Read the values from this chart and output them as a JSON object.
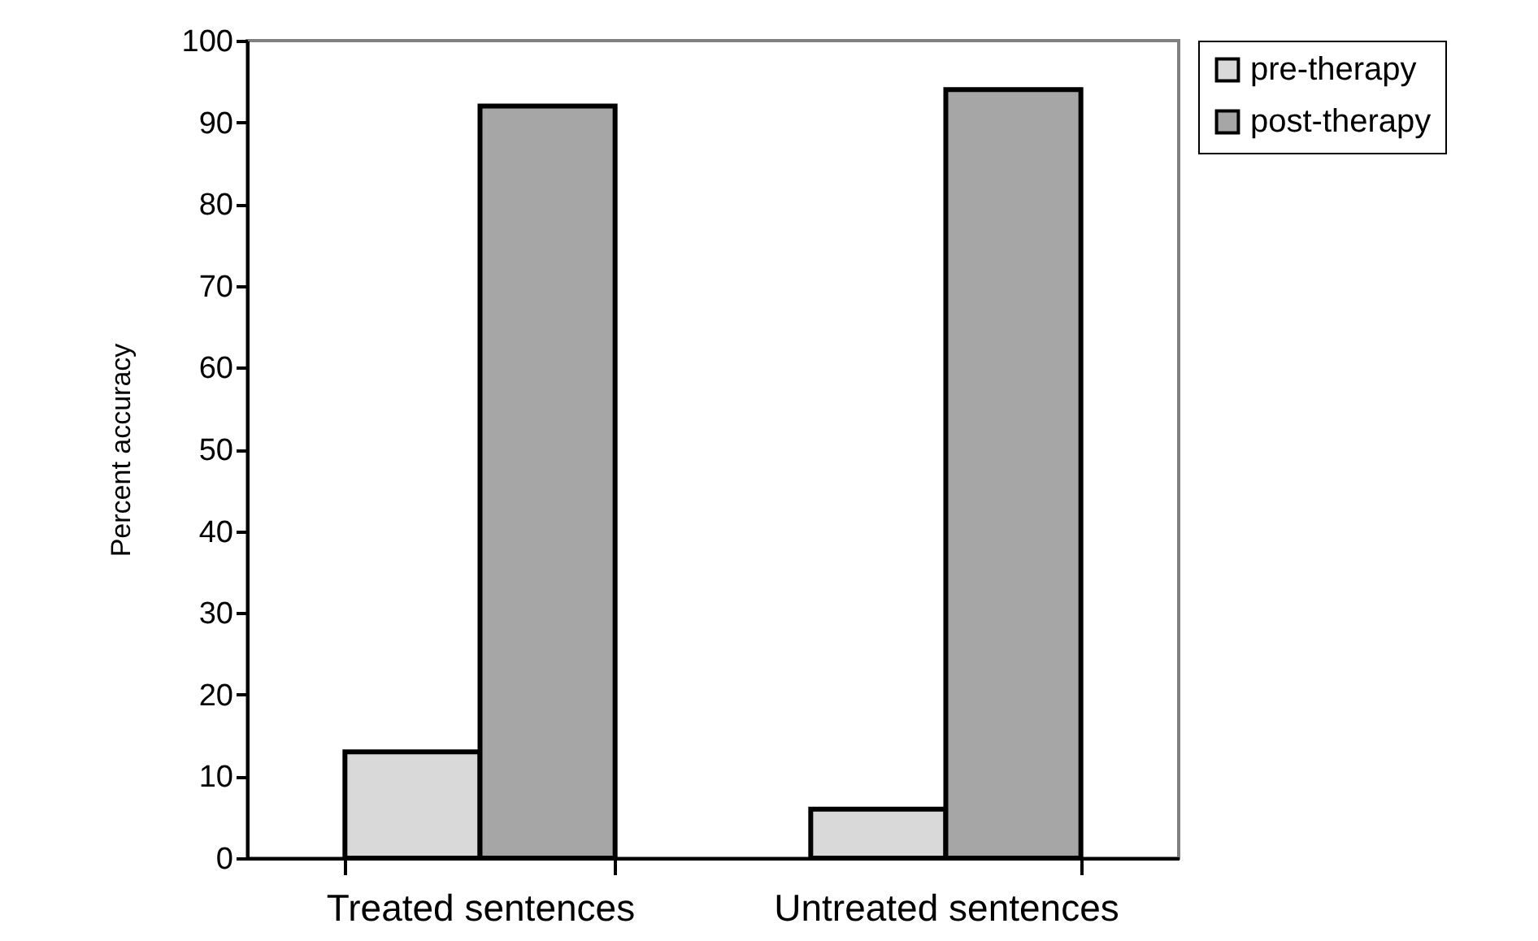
{
  "chart_data": {
    "type": "bar",
    "ylabel": "Percent accuracy",
    "categories": [
      "Treated sentences",
      "Untreated sentences"
    ],
    "series": [
      {
        "name": "pre-therapy",
        "color": "#d9d9d9",
        "values": [
          13,
          6
        ]
      },
      {
        "name": "post-therapy",
        "color": "#a6a6a6",
        "values": [
          92,
          94
        ]
      }
    ],
    "ylim": [
      0,
      100
    ],
    "yticks": [
      0,
      10,
      20,
      30,
      40,
      50,
      60,
      70,
      80,
      90,
      100
    ],
    "grid": false,
    "legend": "right"
  }
}
